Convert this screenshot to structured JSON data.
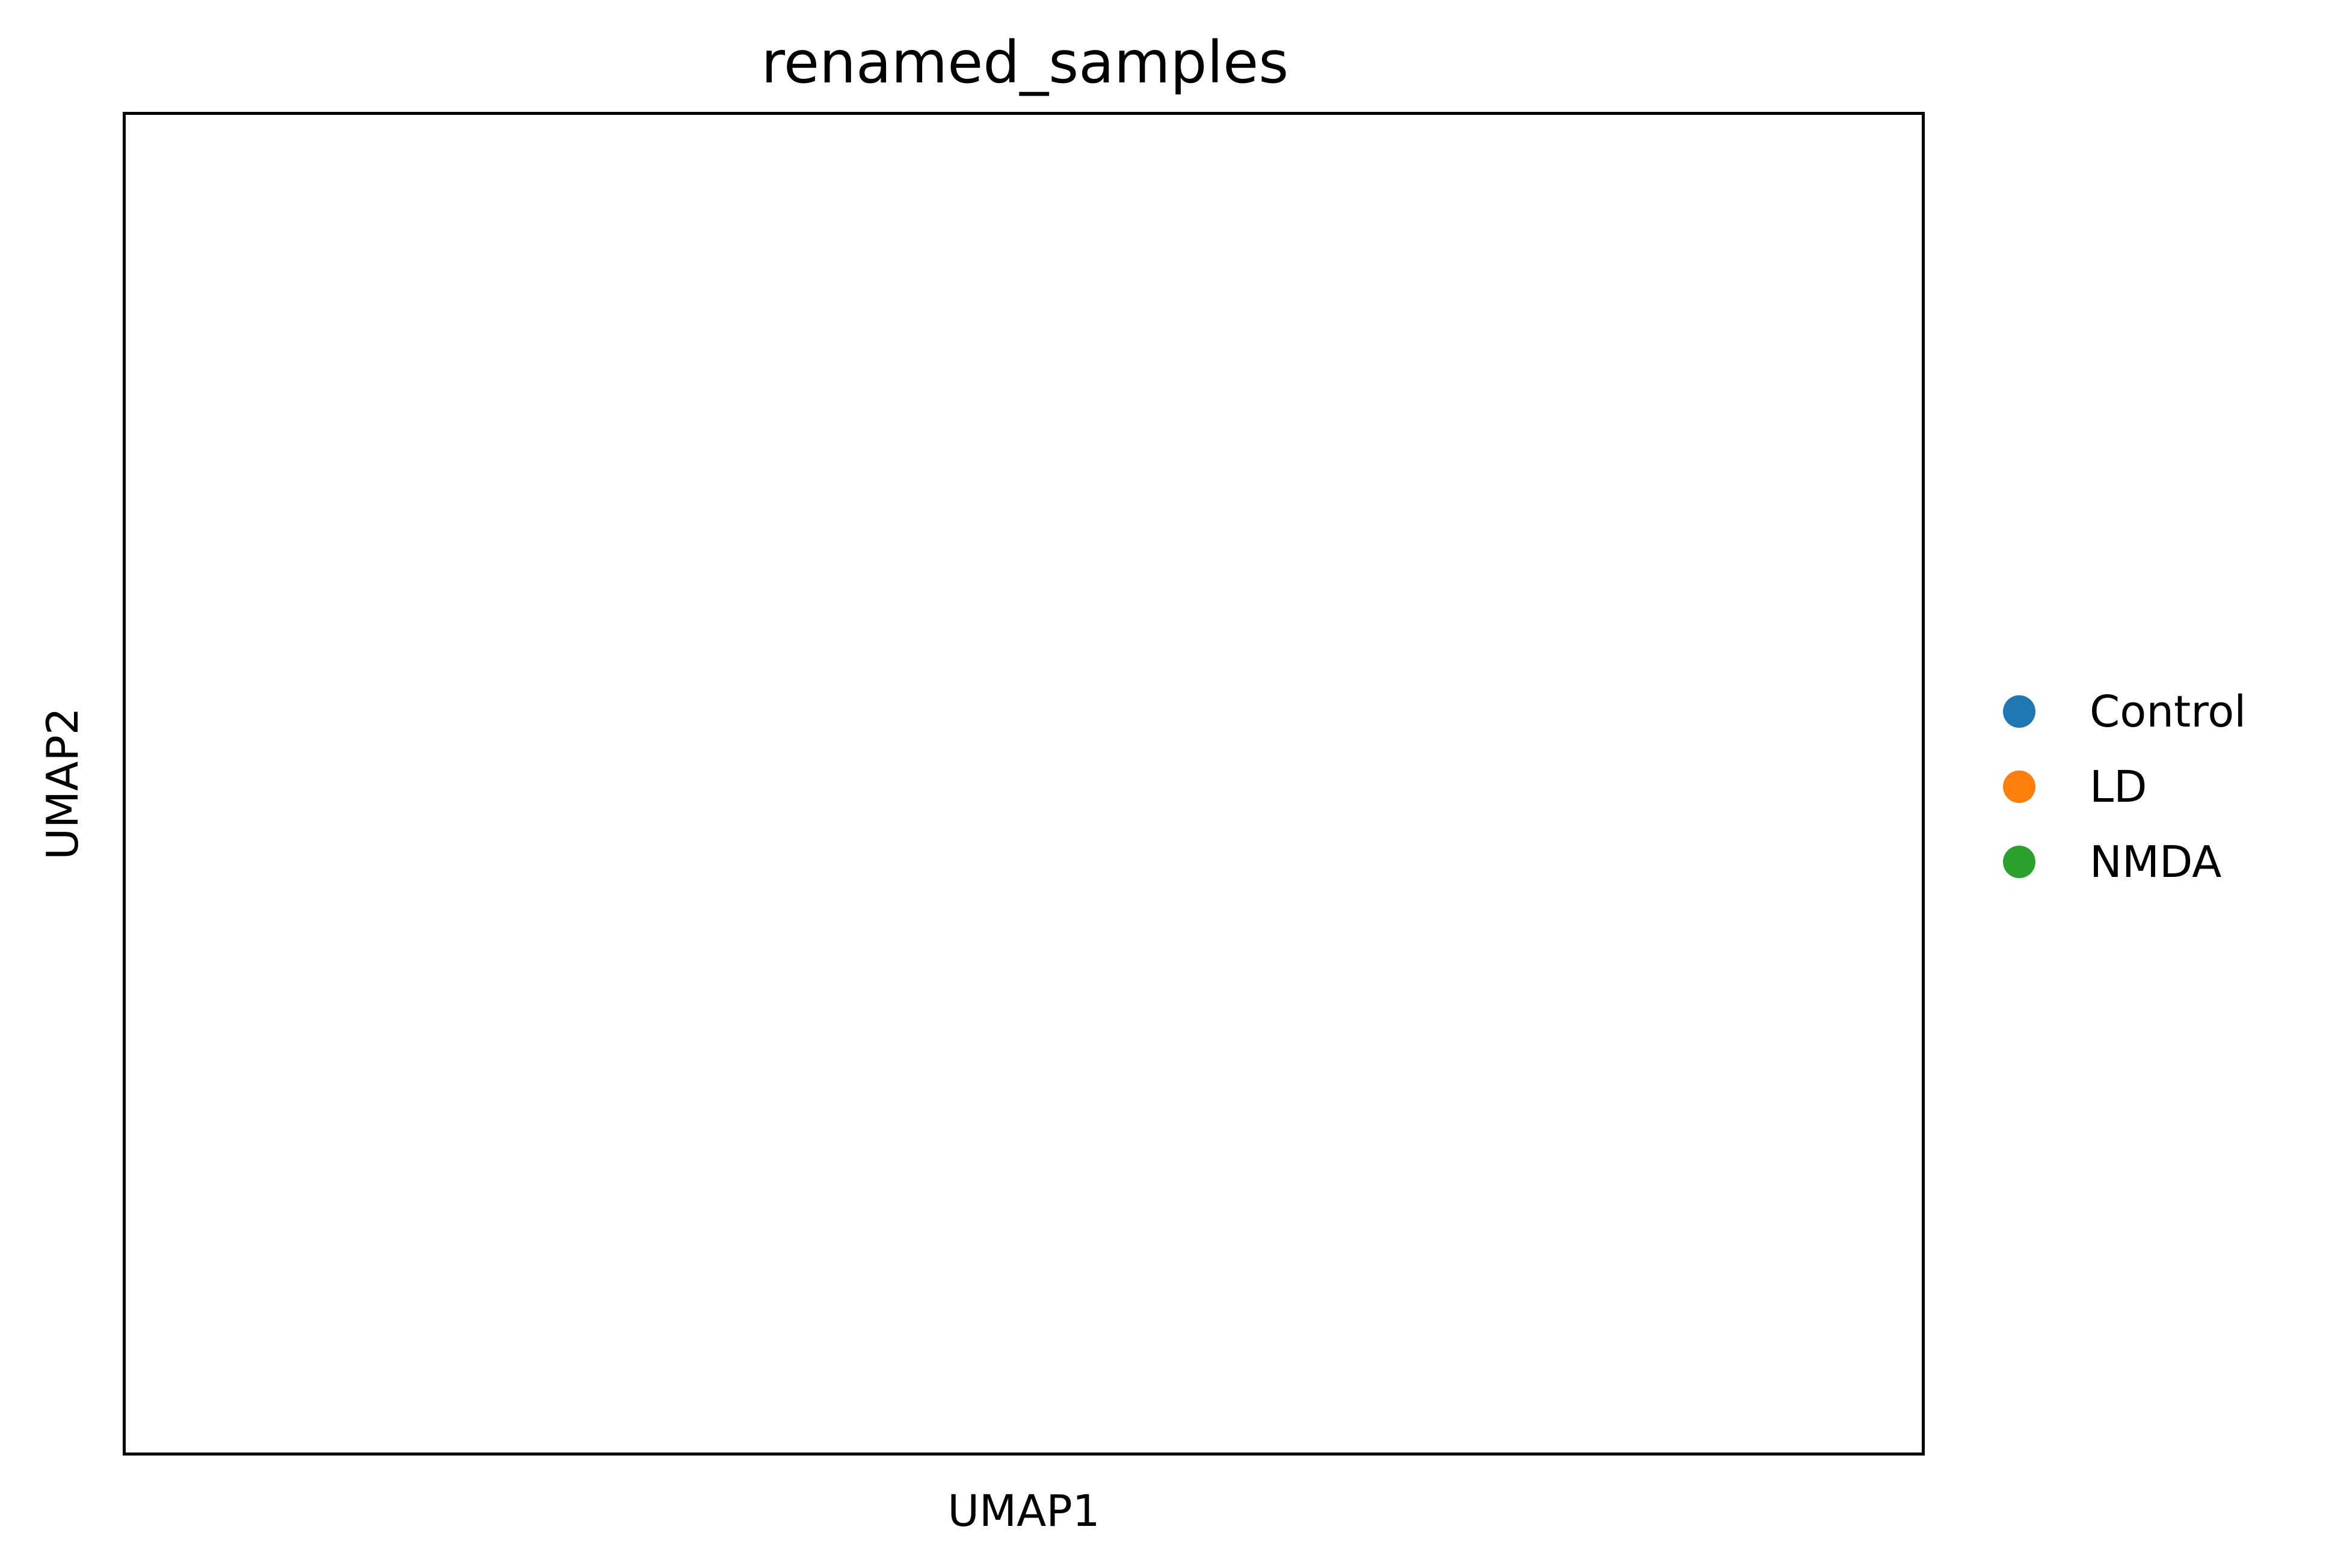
{
  "title": "renamed_samples",
  "chart_data": {
    "type": "scatter",
    "title": "renamed_samples",
    "xlabel": "UMAP1",
    "ylabel": "UMAP2",
    "xticks": [],
    "yticks": [],
    "grid": false,
    "legend_position": "right",
    "legend": [
      {
        "name": "Control",
        "color": "#1f77b4"
      },
      {
        "name": "LD",
        "color": "#ff7f0e"
      },
      {
        "name": "NMDA",
        "color": "#2ca02c"
      }
    ],
    "series": [
      {
        "name": "Control",
        "color": "#1f77b4"
      },
      {
        "name": "LD",
        "color": "#ff7f0e"
      },
      {
        "name": "NMDA",
        "color": "#2ca02c"
      }
    ]
  }
}
